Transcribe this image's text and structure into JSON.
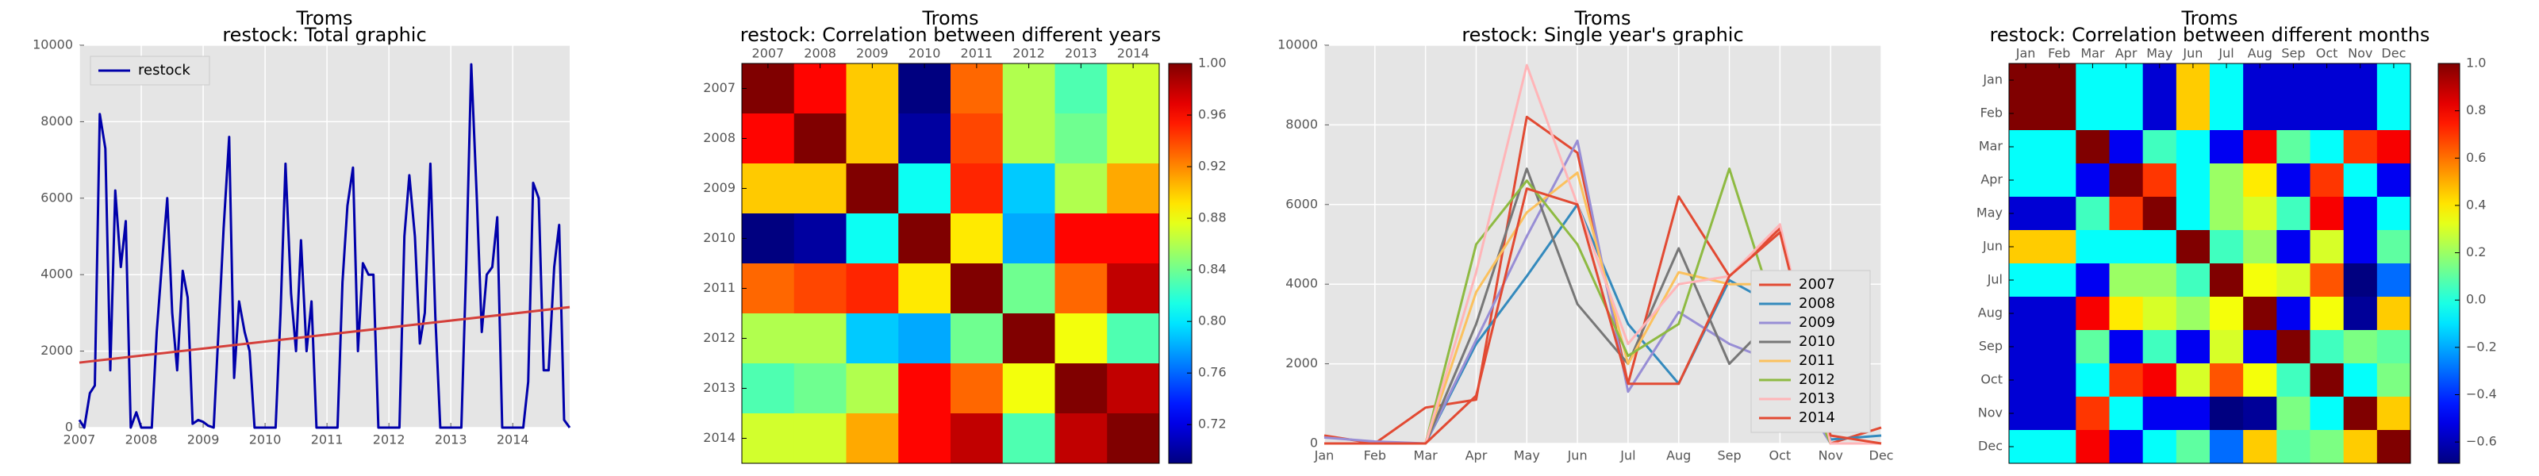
{
  "chart_data": [
    {
      "type": "line",
      "title": "Troms",
      "subtitle": "restock: Total graphic",
      "x": [
        2007,
        2007.08,
        2007.17,
        2007.25,
        2007.33,
        2007.42,
        2007.5,
        2007.58,
        2007.67,
        2007.75,
        2007.83,
        2007.92,
        2008,
        2008.08,
        2008.17,
        2008.25,
        2008.33,
        2008.42,
        2008.5,
        2008.58,
        2008.67,
        2008.75,
        2008.83,
        2008.92,
        2009,
        2009.08,
        2009.17,
        2009.25,
        2009.33,
        2009.42,
        2009.5,
        2009.58,
        2009.67,
        2009.75,
        2009.83,
        2009.92,
        2010,
        2010.08,
        2010.17,
        2010.25,
        2010.33,
        2010.42,
        2010.5,
        2010.58,
        2010.67,
        2010.75,
        2010.83,
        2010.92,
        2011,
        2011.08,
        2011.17,
        2011.25,
        2011.33,
        2011.42,
        2011.5,
        2011.58,
        2011.67,
        2011.75,
        2011.83,
        2011.92,
        2012,
        2012.08,
        2012.17,
        2012.25,
        2012.33,
        2012.42,
        2012.5,
        2012.58,
        2012.67,
        2012.75,
        2012.83,
        2012.92,
        2013,
        2013.08,
        2013.17,
        2013.25,
        2013.33,
        2013.42,
        2013.5,
        2013.58,
        2013.67,
        2013.75,
        2013.83,
        2013.92,
        2014,
        2014.08,
        2014.17,
        2014.25,
        2014.33,
        2014.42,
        2014.5,
        2014.58,
        2014.67,
        2014.75,
        2014.83,
        2014.92
      ],
      "series": [
        {
          "name": "restock",
          "color": "#0000aa",
          "values": [
            200,
            0,
            900,
            1100,
            8200,
            7300,
            1500,
            6200,
            4200,
            5400,
            0,
            400,
            0,
            0,
            0,
            2500,
            4200,
            6000,
            3000,
            1500,
            4100,
            3400,
            100,
            200,
            150,
            50,
            0,
            2600,
            5200,
            7600,
            1300,
            3300,
            2500,
            2000,
            0,
            0,
            0,
            0,
            0,
            3000,
            6900,
            3500,
            2000,
            4900,
            2000,
            3300,
            0,
            0,
            0,
            0,
            0,
            3800,
            5800,
            6800,
            2000,
            4300,
            4000,
            4000,
            0,
            0,
            0,
            0,
            0,
            5000,
            6600,
            5000,
            2200,
            3000,
            6900,
            2900,
            0,
            0,
            0,
            0,
            0,
            4300,
            9500,
            6000,
            2500,
            4000,
            4200,
            5500,
            0,
            0,
            0,
            0,
            0,
            1200,
            6400,
            6000,
            1500,
            1500,
            4200,
            5300,
            200,
            0
          ]
        }
      ],
      "trend": {
        "color": "#d43f3a",
        "x": [
          2007,
          2014.92
        ],
        "values": [
          1700,
          3150
        ]
      },
      "xlim": [
        2007,
        2014.92
      ],
      "xticks": [
        2007,
        2008,
        2009,
        2010,
        2011,
        2012,
        2013,
        2014
      ],
      "ylim": [
        0,
        10000
      ],
      "yticks": [
        0,
        2000,
        4000,
        6000,
        8000,
        10000
      ],
      "grid": true,
      "legend": "upper left"
    },
    {
      "type": "heatmap",
      "title": "Troms",
      "subtitle": "restock: Correlation between different years",
      "colormap": "jet",
      "categories": [
        "2007",
        "2008",
        "2009",
        "2010",
        "2011",
        "2012",
        "2013",
        "2014"
      ],
      "values": [
        [
          1.0,
          0.96,
          0.9,
          0.69,
          0.93,
          0.86,
          0.83,
          0.87
        ],
        [
          0.96,
          1.0,
          0.9,
          0.7,
          0.94,
          0.86,
          0.84,
          0.87
        ],
        [
          0.9,
          0.9,
          1.0,
          0.81,
          0.95,
          0.79,
          0.86,
          0.91
        ],
        [
          0.69,
          0.7,
          0.81,
          1.0,
          0.89,
          0.78,
          0.96,
          0.96
        ],
        [
          0.93,
          0.94,
          0.95,
          0.89,
          1.0,
          0.84,
          0.93,
          0.98
        ],
        [
          0.86,
          0.86,
          0.79,
          0.78,
          0.84,
          1.0,
          0.88,
          0.83
        ],
        [
          0.83,
          0.84,
          0.86,
          0.96,
          0.93,
          0.88,
          1.0,
          0.98
        ],
        [
          0.87,
          0.87,
          0.91,
          0.96,
          0.98,
          0.83,
          0.98,
          1.0
        ]
      ],
      "clim": [
        0.69,
        1.0
      ],
      "cticks": [
        0.72,
        0.76,
        {
          "value": 0.8,
          "label": "0.80"
        },
        0.84,
        0.88,
        0.92,
        0.96,
        {
          "value": 1.0,
          "label": "1.00"
        }
      ]
    },
    {
      "type": "line",
      "title": "Troms",
      "subtitle": "restock: Single year's graphic",
      "categories": [
        "Jan",
        "Feb",
        "Mar",
        "Apr",
        "May",
        "Jun",
        "Jul",
        "Aug",
        "Sep",
        "Oct",
        "Nov",
        "Dec"
      ],
      "series": [
        {
          "name": "2007",
          "color": "#E24A33",
          "values": [
            200,
            0,
            900,
            1100,
            8200,
            7300,
            1500,
            6200,
            4200,
            5400,
            0,
            400
          ]
        },
        {
          "name": "2008",
          "color": "#348ABD",
          "values": [
            0,
            0,
            0,
            2500,
            4200,
            6000,
            3000,
            1500,
            4100,
            3400,
            100,
            200
          ]
        },
        {
          "name": "2009",
          "color": "#988ED5",
          "values": [
            150,
            50,
            0,
            2600,
            5200,
            7600,
            1300,
            3300,
            2500,
            2000,
            0,
            0
          ]
        },
        {
          "name": "2010",
          "color": "#777777",
          "values": [
            0,
            0,
            0,
            3000,
            6900,
            3500,
            2000,
            4900,
            2000,
            3300,
            0,
            0
          ]
        },
        {
          "name": "2011",
          "color": "#FBC15E",
          "values": [
            0,
            0,
            0,
            3800,
            5800,
            6800,
            2000,
            4300,
            4000,
            4000,
            0,
            0
          ]
        },
        {
          "name": "2012",
          "color": "#8EBA42",
          "values": [
            0,
            0,
            0,
            5000,
            6600,
            5000,
            2200,
            3000,
            6900,
            2900,
            0,
            0
          ]
        },
        {
          "name": "2013",
          "color": "#FFB5B8",
          "values": [
            0,
            0,
            0,
            4300,
            9500,
            6000,
            2500,
            4000,
            4200,
            5500,
            0,
            0
          ]
        },
        {
          "name": "2014",
          "color": "#E24A33",
          "values": [
            0,
            0,
            0,
            1200,
            6400,
            6000,
            1500,
            1500,
            4200,
            5300,
            200,
            0
          ]
        }
      ],
      "ylim": [
        0,
        10000
      ],
      "yticks": [
        0,
        2000,
        4000,
        6000,
        8000,
        10000
      ],
      "grid": true,
      "legend": "lower right"
    },
    {
      "type": "heatmap",
      "title": "Troms",
      "subtitle": "restock: Correlation between different months",
      "colormap": "jet",
      "categories": [
        "Jan",
        "Feb",
        "Mar",
        "Apr",
        "May",
        "Jun",
        "Jul",
        "Aug",
        "Sep",
        "Oct",
        "Nov",
        "Dec"
      ],
      "values": [
        [
          1.0,
          1.0,
          -0.05,
          -0.05,
          -0.55,
          0.45,
          -0.05,
          -0.55,
          -0.55,
          -0.55,
          -0.55,
          -0.05
        ],
        [
          1.0,
          1.0,
          -0.05,
          -0.05,
          -0.55,
          0.45,
          -0.05,
          -0.55,
          -0.55,
          -0.55,
          -0.55,
          -0.05
        ],
        [
          -0.05,
          -0.05,
          1.0,
          -0.5,
          0.05,
          -0.05,
          -0.5,
          0.8,
          0.1,
          -0.05,
          0.7,
          0.8
        ],
        [
          -0.05,
          -0.05,
          -0.5,
          1.0,
          0.7,
          -0.05,
          0.2,
          0.4,
          -0.5,
          0.7,
          -0.05,
          -0.5
        ],
        [
          -0.55,
          -0.55,
          0.05,
          0.7,
          1.0,
          -0.05,
          0.2,
          0.3,
          0.05,
          0.8,
          -0.5,
          -0.05
        ],
        [
          0.45,
          0.45,
          -0.05,
          -0.05,
          -0.05,
          1.0,
          0.05,
          0.2,
          -0.5,
          0.3,
          -0.5,
          0.1
        ],
        [
          -0.05,
          -0.05,
          -0.5,
          0.2,
          0.2,
          0.05,
          1.0,
          0.35,
          0.3,
          0.65,
          -0.69,
          -0.3
        ],
        [
          -0.55,
          -0.55,
          0.8,
          0.4,
          0.3,
          0.2,
          0.35,
          1.0,
          -0.5,
          0.35,
          -0.65,
          0.45
        ],
        [
          -0.55,
          -0.55,
          0.1,
          -0.5,
          0.05,
          -0.5,
          0.3,
          -0.5,
          1.0,
          0.05,
          0.15,
          0.1
        ],
        [
          -0.55,
          -0.55,
          -0.05,
          0.7,
          0.8,
          0.3,
          0.65,
          0.35,
          0.05,
          1.0,
          -0.05,
          0.15
        ],
        [
          -0.55,
          -0.55,
          0.7,
          -0.05,
          -0.5,
          -0.5,
          -0.69,
          -0.65,
          0.15,
          -0.05,
          1.0,
          0.45
        ],
        [
          -0.05,
          -0.05,
          0.8,
          -0.5,
          -0.05,
          0.1,
          -0.3,
          0.45,
          0.1,
          0.15,
          0.45,
          1.0
        ]
      ],
      "clim": [
        -0.69,
        1.0
      ],
      "cticks": [
        {
          "value": -0.6,
          "label": "−0.6"
        },
        {
          "value": -0.4,
          "label": "−0.4"
        },
        {
          "value": -0.2,
          "label": "−0.2"
        },
        {
          "value": 0,
          "label": "0.0"
        },
        0.2,
        0.4,
        0.6,
        0.8,
        {
          "value": 1,
          "label": "1.0"
        }
      ]
    }
  ]
}
